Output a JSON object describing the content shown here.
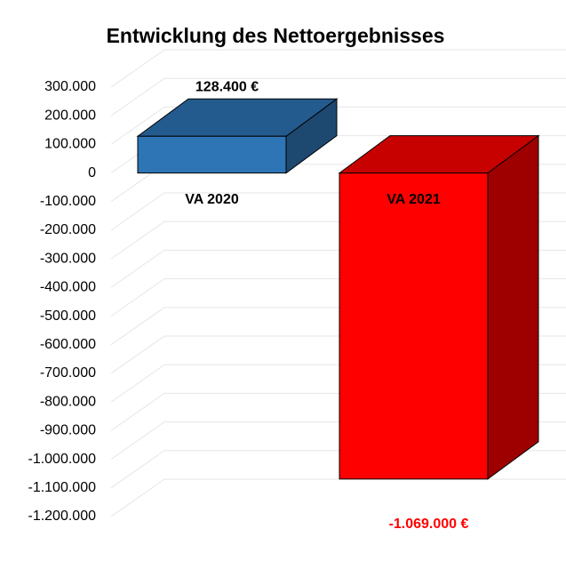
{
  "chart_data": {
    "type": "bar3d",
    "title": "Entwicklung des Nettoergebnisses",
    "categories": [
      "VA 2020",
      "VA 2021"
    ],
    "values": [
      128400,
      -1069000
    ],
    "value_labels": [
      "128.400 €",
      "-1.069.000 €"
    ],
    "colors": [
      "#2e75b6",
      "#ff0000"
    ],
    "label_colors": [
      "#000000",
      "#ff0000"
    ],
    "ylim": [
      -1200000,
      300000
    ],
    "yticks": [
      {
        "value": 300000,
        "label": "300.000"
      },
      {
        "value": 200000,
        "label": "200.000"
      },
      {
        "value": 100000,
        "label": "100.000"
      },
      0,
      {
        "value": -100000,
        "label": "-100.000"
      },
      {
        "value": -200000,
        "label": "-200.000"
      },
      {
        "value": -300000,
        "label": "-300.000"
      },
      {
        "value": -400000,
        "label": "-400.000"
      },
      {
        "value": -500000,
        "label": "-500.000"
      },
      {
        "value": -600000,
        "label": "-600.000"
      },
      {
        "value": -700000,
        "label": "-700.000"
      },
      {
        "value": -800000,
        "label": "-800.000"
      },
      {
        "value": -900000,
        "label": "-900.000"
      },
      {
        "value": -1000000,
        "label": "-1.000.000"
      },
      {
        "value": -1100000,
        "label": "-1.100.000"
      },
      {
        "value": -1200000,
        "label": "-1.200.000"
      }
    ],
    "grid": true
  }
}
